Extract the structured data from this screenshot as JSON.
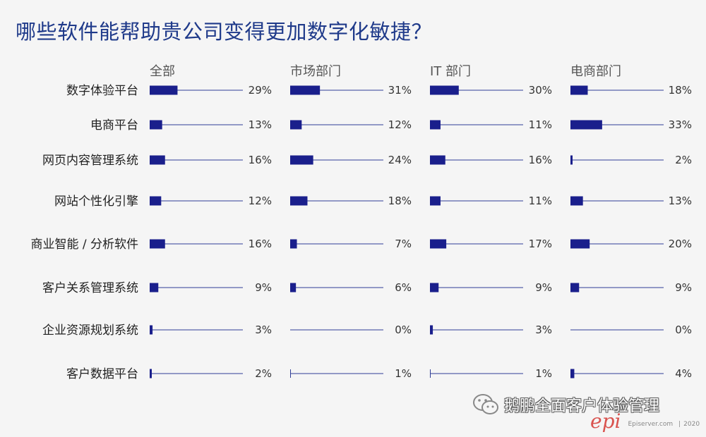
{
  "title": "哪些软件能帮助贵公司变得更加数字化敏捷？",
  "chart_data": {
    "type": "bar",
    "categories": [
      "数字体验平台",
      "电商平台",
      "网页内容管理系统",
      "网站个性化引擎",
      "商业智能 / 分析软件",
      "客户关系管理系统",
      "企业资源规划系统",
      "客户数据平台"
    ],
    "series": [
      {
        "name": "全部",
        "values": [
          29,
          13,
          16,
          12,
          16,
          9,
          3,
          2
        ]
      },
      {
        "name": "市场部门",
        "values": [
          31,
          12,
          24,
          18,
          7,
          6,
          0,
          1
        ]
      },
      {
        "name": "IT 部门",
        "values": [
          30,
          11,
          16,
          11,
          17,
          9,
          3,
          1
        ]
      },
      {
        "name": "电商部门",
        "values": [
          18,
          33,
          2,
          13,
          20,
          9,
          0,
          4
        ]
      }
    ],
    "value_suffix": "%",
    "xlim": [
      0,
      100
    ],
    "bar_color": "#1a1f8c",
    "line_color": "#2f3d96"
  },
  "footer": {
    "wechat_icon": "wechat-icon",
    "text": "鹅鹏全面客户体验管理"
  },
  "brand": {
    "logo": "epi",
    "site": "Episerver.com",
    "year": "2020"
  }
}
